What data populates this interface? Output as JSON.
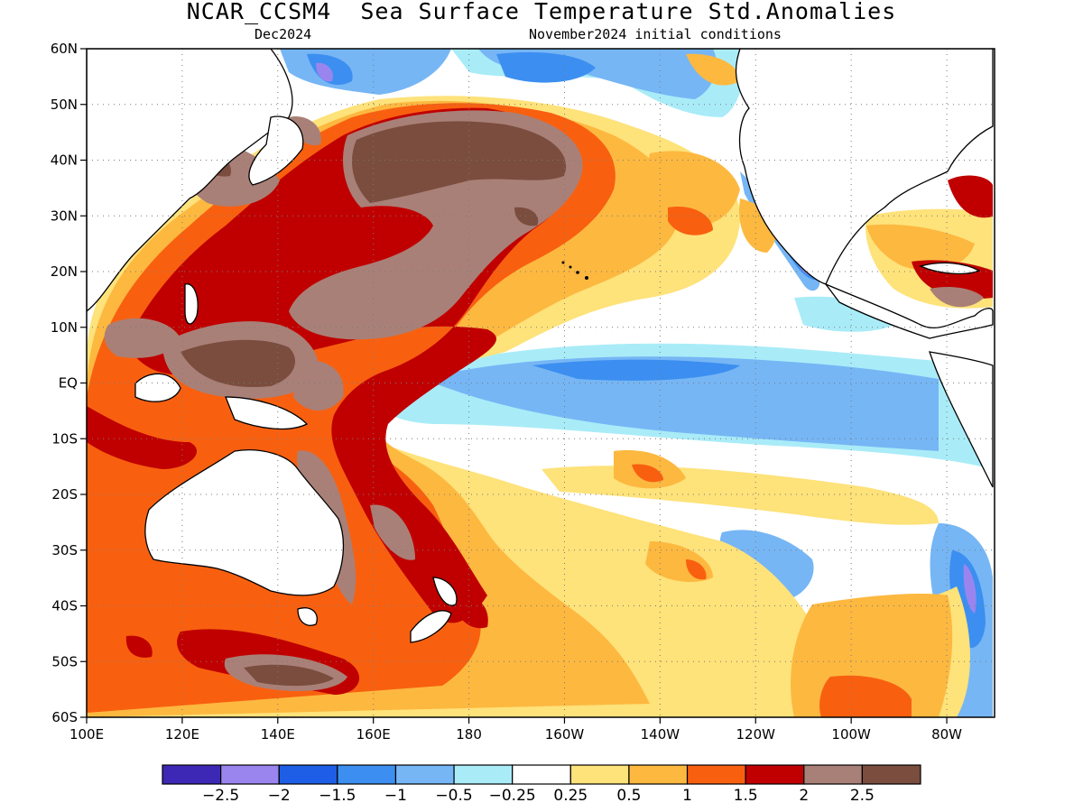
{
  "title": "NCAR_CCSM4  Sea Surface Temperature Std.Anomalies",
  "subtitle_left": "Dec2024",
  "subtitle_right": "November2024 initial conditions",
  "map": {
    "lon_range": [
      100,
      290
    ],
    "lat_range": [
      -60,
      60
    ],
    "lat_ticks": [
      {
        "value": 60,
        "label": "60N"
      },
      {
        "value": 50,
        "label": "50N"
      },
      {
        "value": 40,
        "label": "40N"
      },
      {
        "value": 30,
        "label": "30N"
      },
      {
        "value": 20,
        "label": "20N"
      },
      {
        "value": 10,
        "label": "10N"
      },
      {
        "value": 0,
        "label": "EQ"
      },
      {
        "value": -10,
        "label": "10S"
      },
      {
        "value": -20,
        "label": "20S"
      },
      {
        "value": -30,
        "label": "30S"
      },
      {
        "value": -40,
        "label": "40S"
      },
      {
        "value": -50,
        "label": "50S"
      },
      {
        "value": -60,
        "label": "60S"
      }
    ],
    "lon_ticks": [
      {
        "value": 100,
        "label": "100E"
      },
      {
        "value": 120,
        "label": "120E"
      },
      {
        "value": 140,
        "label": "140E"
      },
      {
        "value": 160,
        "label": "160E"
      },
      {
        "value": 180,
        "label": "180"
      },
      {
        "value": 200,
        "label": "160W"
      },
      {
        "value": 220,
        "label": "140W"
      },
      {
        "value": 240,
        "label": "120W"
      },
      {
        "value": 260,
        "label": "100W"
      },
      {
        "value": 280,
        "label": "80W"
      }
    ],
    "grid": "dotted"
  },
  "colorbar": {
    "colors": [
      "#3c28b4",
      "#9a85ee",
      "#1e5ee6",
      "#3c8ff0",
      "#76b6f5",
      "#a9ecf8",
      "#ffffff",
      "#fee27a",
      "#fdb840",
      "#f86010",
      "#c00000",
      "#a98077",
      "#7a4d3e"
    ],
    "labels": [
      "−2.5",
      "−2",
      "−1.5",
      "−1",
      "−0.5",
      "−0.25",
      "0.25",
      "0.5",
      "1",
      "1.5",
      "2",
      "2.5"
    ]
  }
}
